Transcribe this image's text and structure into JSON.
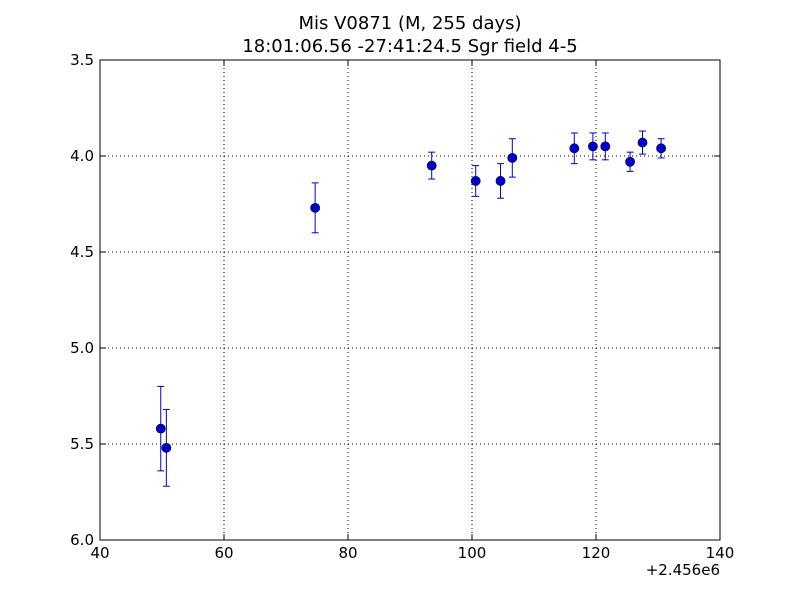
{
  "chart_data": {
    "type": "scatter",
    "title": [
      "Mis V0871 (M, 255 days)",
      "18:01:06.56 -27:41:24.5 Sgr field 4-5"
    ],
    "xlabel": "",
    "ylabel": "",
    "x_offset_label": "+2.456e6",
    "xlim": [
      40,
      140
    ],
    "ylim": [
      3.5,
      6.0
    ],
    "y_inverted": true,
    "grid": true,
    "x_ticks": [
      40,
      60,
      80,
      100,
      120,
      140
    ],
    "x_tick_labels": [
      "40",
      "60",
      "80",
      "100",
      "120",
      "140"
    ],
    "y_ticks": [
      3.5,
      4.0,
      4.5,
      5.0,
      5.5,
      6.0
    ],
    "y_tick_labels": [
      "3.5",
      "4.0",
      "4.5",
      "5.0",
      "5.5",
      "6.0"
    ],
    "marker_color": "#0000cc",
    "errorbar_color": "#0000cc",
    "series": [
      {
        "points": [
          {
            "x": 49.8,
            "y": 5.42,
            "err": 0.22
          },
          {
            "x": 50.7,
            "y": 5.52,
            "err": 0.2
          },
          {
            "x": 74.7,
            "y": 4.27,
            "err": 0.13
          },
          {
            "x": 93.5,
            "y": 4.05,
            "err": 0.07
          },
          {
            "x": 100.6,
            "y": 4.13,
            "err": 0.08
          },
          {
            "x": 104.6,
            "y": 4.13,
            "err": 0.09
          },
          {
            "x": 106.5,
            "y": 4.01,
            "err": 0.1
          },
          {
            "x": 116.5,
            "y": 3.96,
            "err": 0.08
          },
          {
            "x": 119.5,
            "y": 3.95,
            "err": 0.07
          },
          {
            "x": 121.5,
            "y": 3.95,
            "err": 0.07
          },
          {
            "x": 125.5,
            "y": 4.03,
            "err": 0.05
          },
          {
            "x": 127.5,
            "y": 3.93,
            "err": 0.06
          },
          {
            "x": 130.5,
            "y": 3.96,
            "err": 0.05
          }
        ]
      }
    ]
  }
}
